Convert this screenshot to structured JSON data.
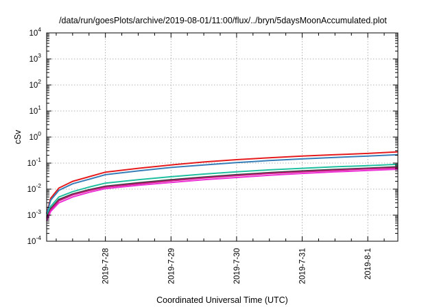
{
  "chart_data": {
    "type": "line",
    "title": "/data/run/goesPlots/archive/2019-08-01/11:00/flux/../bryn/5daysMoonAccumulated.plot",
    "xlabel": "Coordinated Universal Time (UTC)",
    "ylabel": "cSv",
    "yscale": "log",
    "ylim": [
      0.0001,
      10000
    ],
    "xlim": [
      "2019-07-27 02:30",
      "2019-08-01 11:00"
    ],
    "grid": true,
    "legend": "none",
    "x_ticks": [
      "2019-7-28",
      "2019-7-29",
      "2019-7-30",
      "2019-7-31",
      "2019-8-1"
    ],
    "y_ticks": [
      {
        "base": "10",
        "exp": "-4",
        "value": 0.0001
      },
      {
        "base": "10",
        "exp": "-3",
        "value": 0.001
      },
      {
        "base": "10",
        "exp": "-2",
        "value": 0.01
      },
      {
        "base": "10",
        "exp": "-1",
        "value": 0.1
      },
      {
        "base": "10",
        "exp": "0",
        "value": 1
      },
      {
        "base": "10",
        "exp": "1",
        "value": 10
      },
      {
        "base": "10",
        "exp": "2",
        "value": 100
      },
      {
        "base": "10",
        "exp": "3",
        "value": 1000
      },
      {
        "base": "10",
        "exp": "4",
        "value": 10000
      }
    ],
    "x": [
      "2019-07-27 02:30",
      "2019-07-27 04:00",
      "2019-07-27 07:00",
      "2019-07-27 12:00",
      "2019-07-27 18:00",
      "2019-07-28 00:00",
      "2019-07-28 12:00",
      "2019-07-29 00:00",
      "2019-07-29 12:00",
      "2019-07-30 00:00",
      "2019-07-30 12:00",
      "2019-07-31 00:00",
      "2019-07-31 12:00",
      "2019-08-01 00:00",
      "2019-08-01 11:00"
    ],
    "series": [
      {
        "color": "#e41a1c",
        "values": [
          0.0012,
          0.0045,
          0.011,
          0.02,
          0.03,
          0.045,
          0.063,
          0.085,
          0.11,
          0.135,
          0.16,
          0.185,
          0.21,
          0.235,
          0.27
        ]
      },
      {
        "color": "#377eb8",
        "values": [
          0.0011,
          0.0038,
          0.009,
          0.016,
          0.024,
          0.036,
          0.05,
          0.068,
          0.085,
          0.105,
          0.125,
          0.145,
          0.165,
          0.185,
          0.21
        ]
      },
      {
        "color": "#1fbf9f",
        "values": [
          0.0009,
          0.0022,
          0.005,
          0.008,
          0.012,
          0.017,
          0.023,
          0.03,
          0.038,
          0.046,
          0.055,
          0.063,
          0.072,
          0.08,
          0.09
        ]
      },
      {
        "color": "#3d3d3d",
        "values": [
          0.0008,
          0.0018,
          0.004,
          0.0065,
          0.0095,
          0.013,
          0.0175,
          0.023,
          0.029,
          0.036,
          0.043,
          0.05,
          0.057,
          0.064,
          0.072
        ]
      },
      {
        "color": "#c8177e",
        "values": [
          0.0007,
          0.0016,
          0.0036,
          0.006,
          0.0088,
          0.012,
          0.016,
          0.021,
          0.027,
          0.033,
          0.04,
          0.046,
          0.053,
          0.06,
          0.066
        ]
      },
      {
        "color": "#ee2fd6",
        "values": [
          0.0006,
          0.0014,
          0.003,
          0.005,
          0.0075,
          0.0105,
          0.014,
          0.018,
          0.023,
          0.028,
          0.034,
          0.04,
          0.046,
          0.052,
          0.058
        ]
      }
    ]
  }
}
